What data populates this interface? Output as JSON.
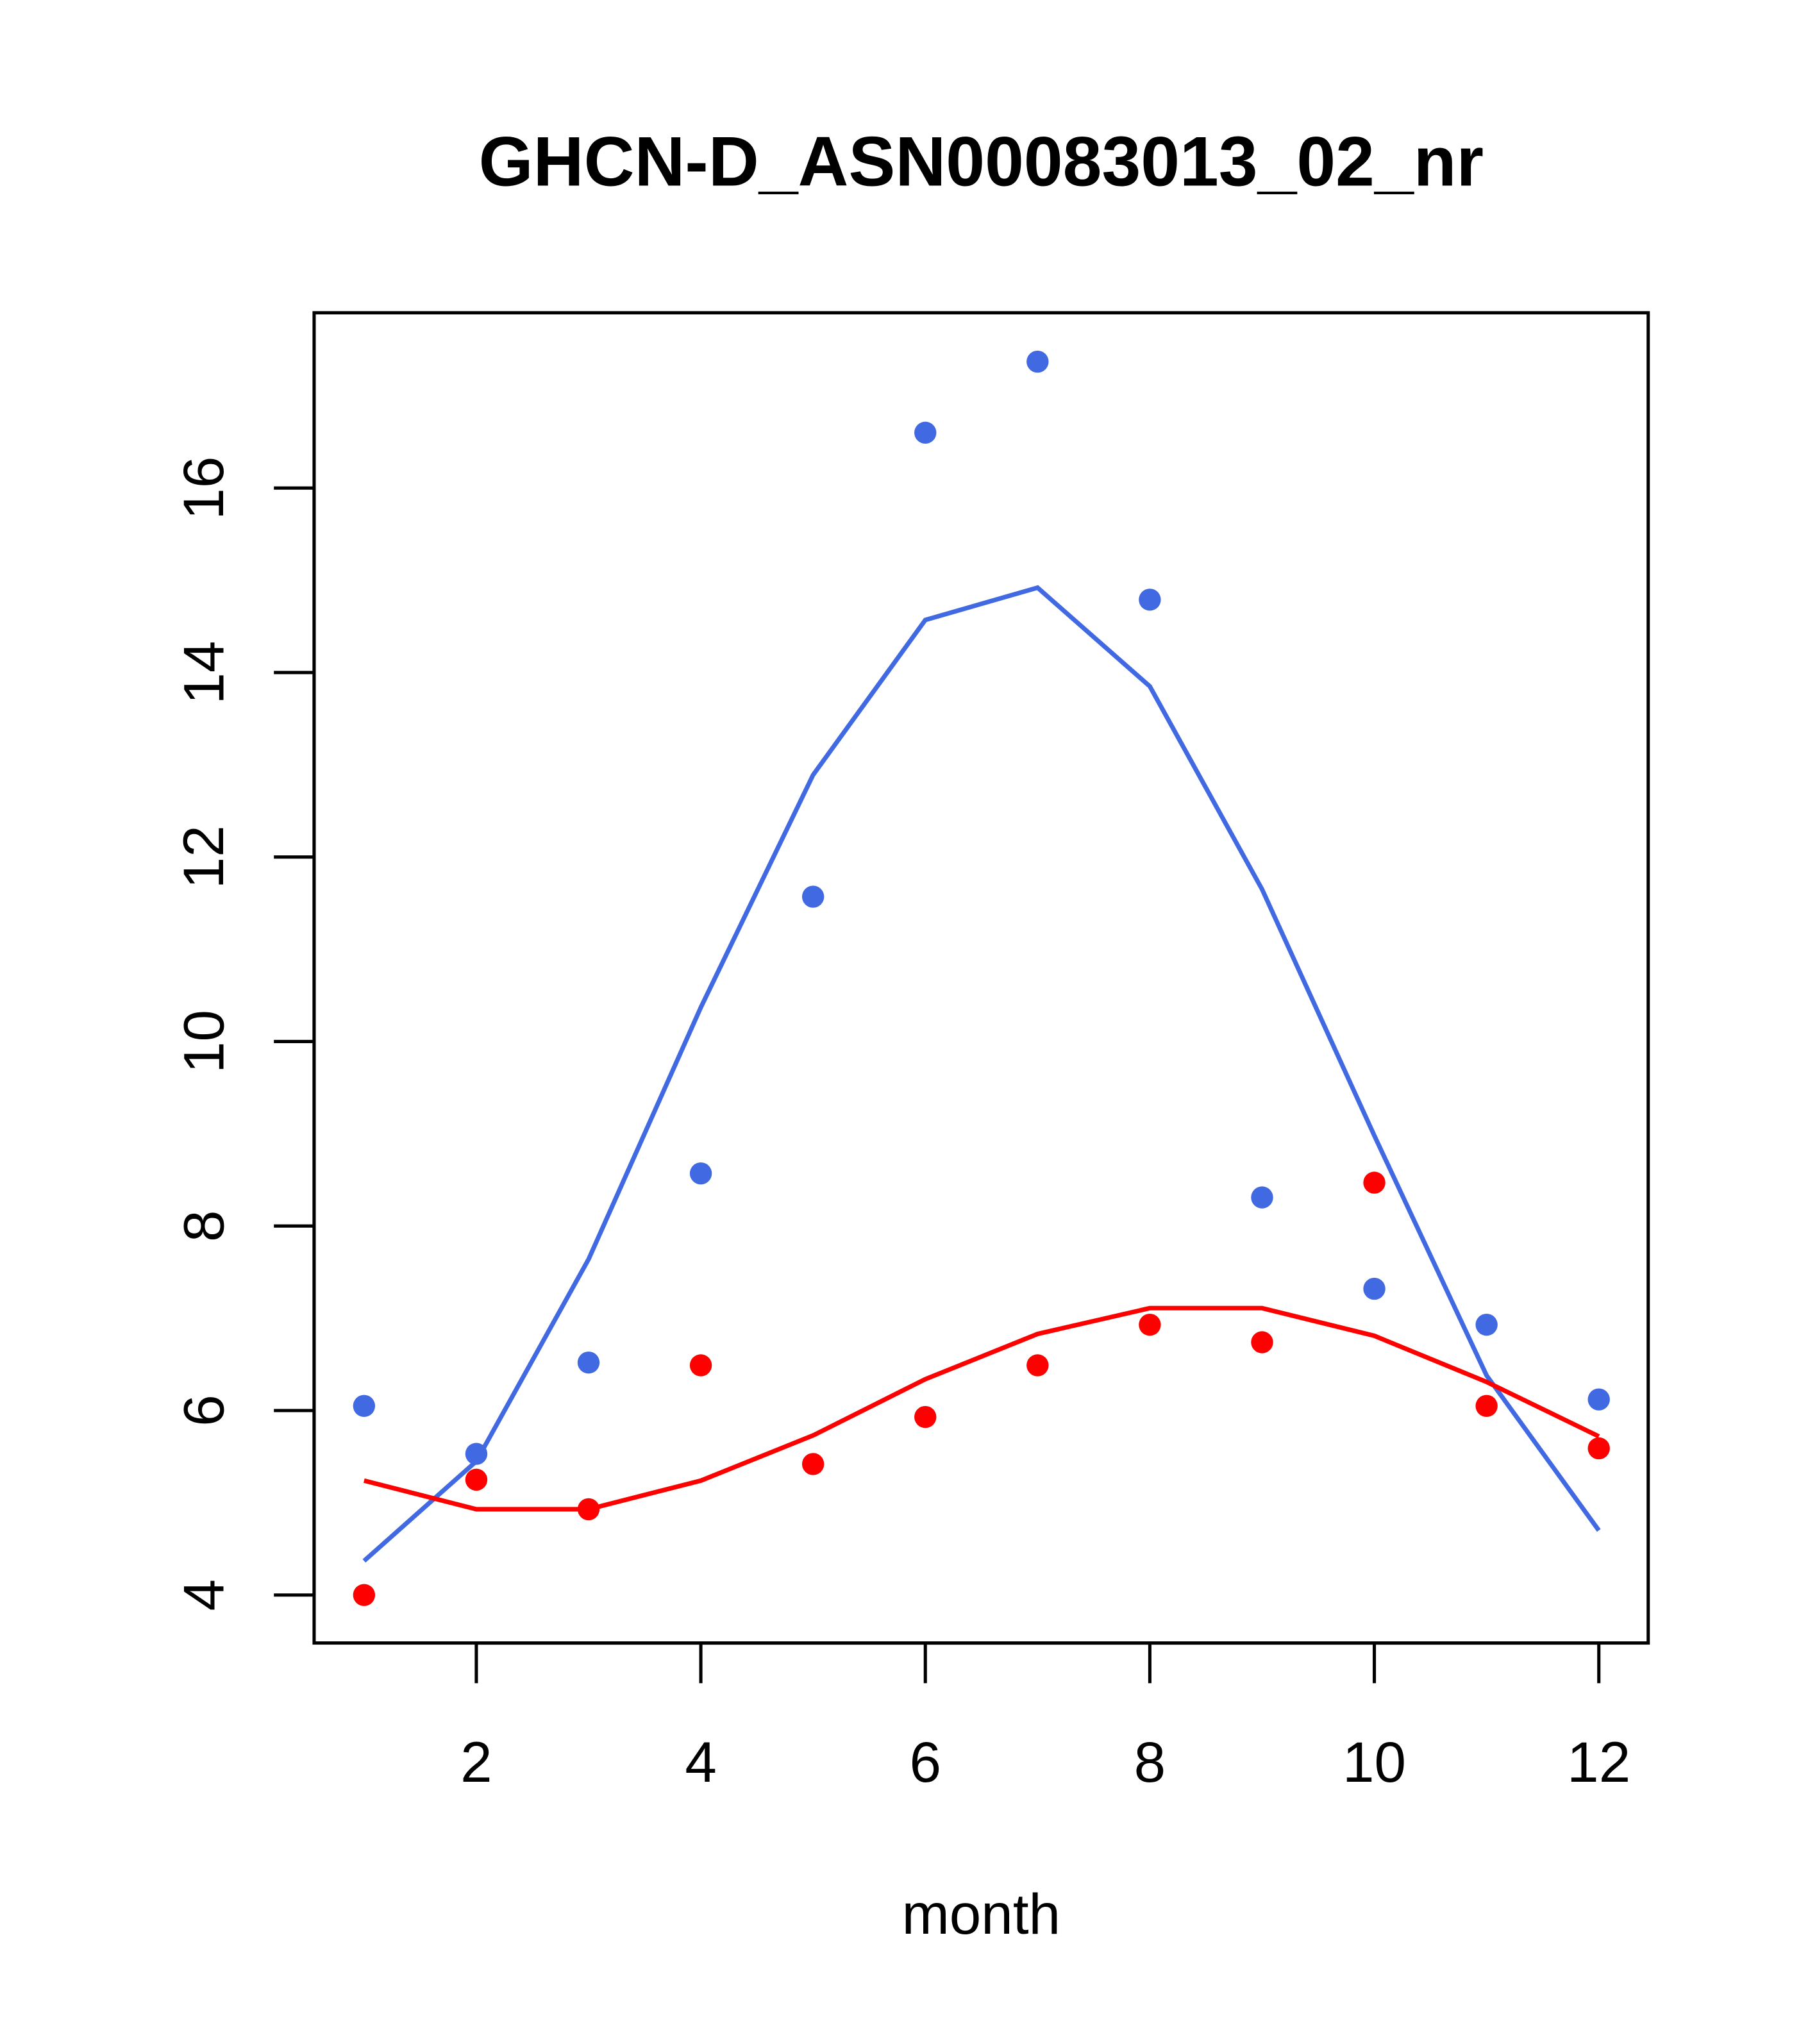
{
  "chart_data": {
    "type": "scatter",
    "title": "GHCN-D_ASN00083013_02_nr",
    "xlabel": "month",
    "ylabel": "",
    "xlim": [
      0.555,
      12.44
    ],
    "ylim": [
      3.48,
      17.9
    ],
    "xticks": [
      2,
      4,
      6,
      8,
      10,
      12
    ],
    "xtick_labels": [
      "2",
      "4",
      "6",
      "8",
      "10",
      "12"
    ],
    "yticks": [
      4,
      6,
      8,
      10,
      12,
      14,
      16
    ],
    "ytick_labels": [
      "4",
      "6",
      "8",
      "10",
      "12",
      "14",
      "16"
    ],
    "grid": false,
    "x": [
      1,
      2,
      3,
      4,
      5,
      6,
      7,
      8,
      9,
      10,
      11,
      12
    ],
    "series": [
      {
        "name": "blue-points",
        "kind": "points",
        "color": "#4169E1",
        "values": [
          6.05,
          5.53,
          6.52,
          8.57,
          11.57,
          16.6,
          17.37,
          14.79,
          8.31,
          7.32,
          6.93,
          6.12
        ]
      },
      {
        "name": "blue-line",
        "kind": "line",
        "color": "#4169E1",
        "values": [
          4.37,
          5.45,
          7.64,
          10.37,
          12.89,
          14.57,
          14.92,
          13.85,
          11.65,
          8.98,
          6.38,
          4.7
        ]
      },
      {
        "name": "red-points",
        "kind": "points",
        "color": "#FF0000",
        "values": [
          4.0,
          5.25,
          4.93,
          6.49,
          5.42,
          5.93,
          6.49,
          6.93,
          6.74,
          8.47,
          6.05,
          5.59
        ]
      },
      {
        "name": "red-line",
        "kind": "line",
        "color": "#FF0000",
        "values": [
          5.24,
          4.93,
          4.93,
          5.24,
          5.73,
          6.34,
          6.83,
          7.11,
          7.11,
          6.81,
          6.31,
          5.72
        ]
      }
    ]
  }
}
